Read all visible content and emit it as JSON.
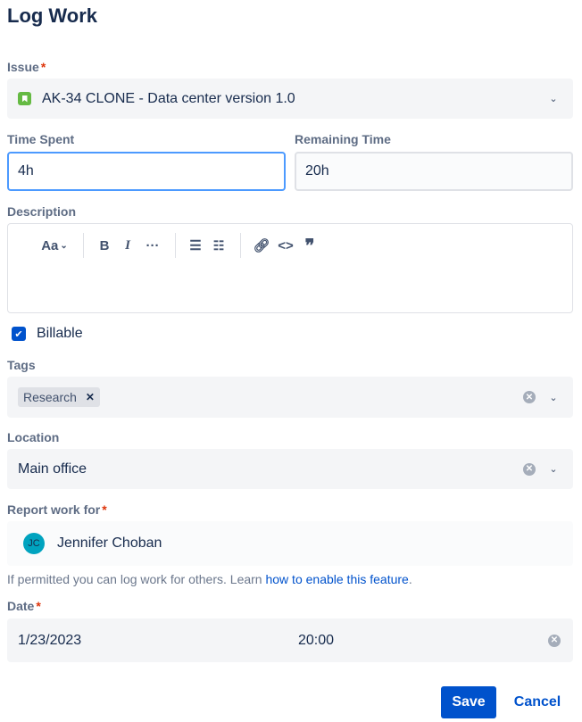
{
  "title": "Log Work",
  "issue": {
    "label": "Issue",
    "required": "*",
    "value": "AK-34 CLONE - Data center version 1.0",
    "icon": "story-icon",
    "color": "#65BA43"
  },
  "time_spent": {
    "label": "Time Spent",
    "value": "4h"
  },
  "remaining": {
    "label": "Remaining Time",
    "value": "20h"
  },
  "description": {
    "label": "Description",
    "toolbar": {
      "text_style": "Aa",
      "bold": "B",
      "italic": "I",
      "more": "···",
      "link": "link-icon",
      "code": "<>",
      "quote": "❞"
    }
  },
  "billable": {
    "label": "Billable",
    "checked": true
  },
  "tags": {
    "label": "Tags",
    "items": [
      "Research"
    ]
  },
  "location": {
    "label": "Location",
    "value": "Main office"
  },
  "report_for": {
    "label": "Report work for",
    "required": "*",
    "initials": "JC",
    "name": "Jennifer Choban"
  },
  "helper": {
    "text": "If permitted you can log work for others. Learn ",
    "link": "how to enable this feature",
    "end": "."
  },
  "date": {
    "label": "Date",
    "required": "*",
    "date": "1/23/2023",
    "time": "20:00"
  },
  "actions": {
    "save": "Save",
    "cancel": "Cancel"
  },
  "colors": {
    "primary": "#0052CC",
    "focus": "#4C9AFF"
  }
}
